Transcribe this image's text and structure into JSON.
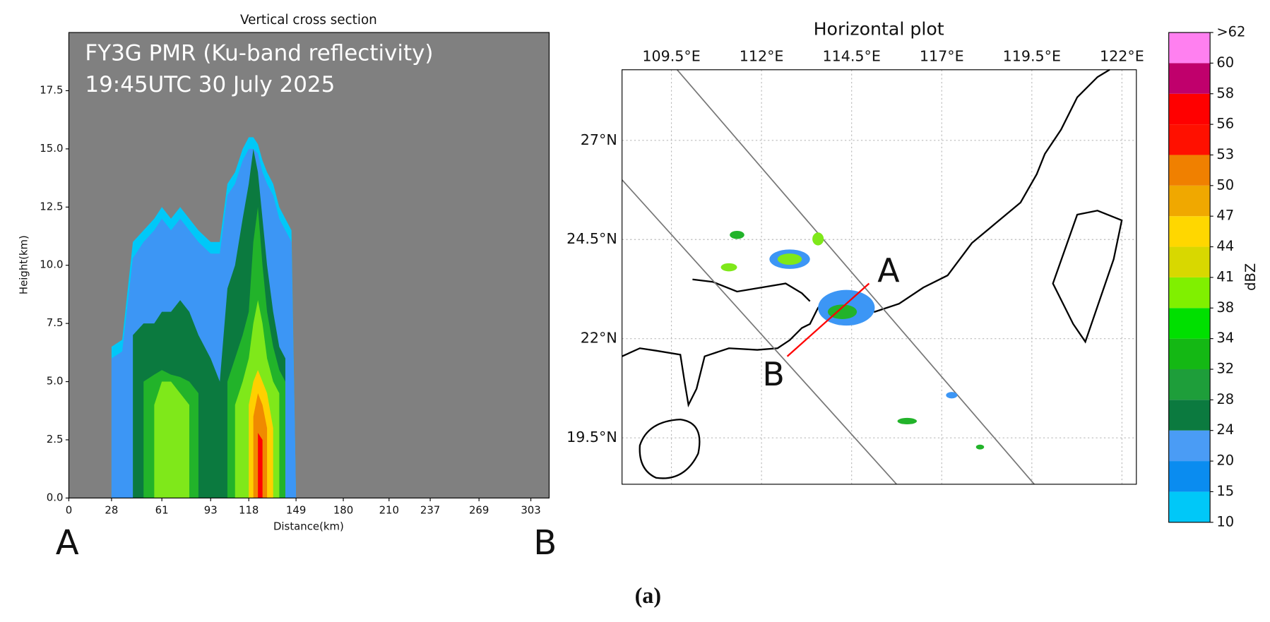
{
  "chart_data": [
    {
      "type": "area",
      "title": "Vertical cross section",
      "annotations": [
        "FY3G PMR (Ku-band reflectivity)",
        "19:45UTC 30 July 2025"
      ],
      "start_label": "A",
      "end_label": "B",
      "x_label": "Distance(km)",
      "y_label": "Height(km)",
      "background": "#808080",
      "xlim": [
        0,
        315
      ],
      "ylim": [
        0,
        20
      ],
      "xticks": [
        0,
        28,
        61,
        93,
        118,
        149,
        180,
        210,
        237,
        269,
        303
      ],
      "yticks": [
        {
          "value": 0,
          "label": "0.0"
        },
        {
          "value": 2.5,
          "label": "2.5"
        },
        {
          "value": 5,
          "label": "5.0"
        },
        {
          "value": 7.5,
          "label": "7.5"
        },
        {
          "value": 10,
          "label": "10.0"
        },
        {
          "value": 12.5,
          "label": "12.5"
        },
        {
          "value": 15,
          "label": "15.0"
        },
        {
          "value": 17.5,
          "label": "17.5"
        }
      ],
      "x": [
        28,
        35,
        42,
        49,
        56,
        61,
        67,
        73,
        79,
        85,
        93,
        99,
        104,
        109,
        114,
        118,
        121,
        124,
        127,
        130,
        134,
        138,
        142,
        146,
        149
      ],
      "series": [
        {
          "color": "#00c8f8",
          "values": [
            6.5,
            6.8,
            11,
            11.5,
            12,
            12.5,
            12,
            12.5,
            12,
            11.5,
            11,
            11,
            13.5,
            14,
            15,
            15.5,
            15.5,
            15.2,
            14.5,
            14,
            13.5,
            12.5,
            12,
            11.5,
            0
          ]
        },
        {
          "color": "#3c96f5",
          "values": [
            6,
            6.3,
            10.3,
            11,
            11.5,
            12,
            11.5,
            12,
            11.5,
            11,
            10.5,
            10.5,
            13,
            13.5,
            14.5,
            15,
            15,
            14.8,
            14,
            13.5,
            13,
            12,
            11.5,
            11,
            0
          ]
        },
        {
          "color": "#0b7a3f",
          "values": [
            null,
            null,
            7,
            7.5,
            7.5,
            8,
            8,
            8.5,
            8,
            7,
            6,
            5,
            9,
            10,
            12,
            13.5,
            15,
            14,
            12,
            10,
            8,
            6.5,
            6,
            null,
            null
          ]
        },
        {
          "color": "#22b32a",
          "values": [
            null,
            null,
            null,
            5,
            5.3,
            5.5,
            5.3,
            5.2,
            5,
            4.5,
            null,
            null,
            5,
            6,
            7,
            8,
            11,
            12.5,
            10,
            8,
            6.5,
            5.5,
            5,
            null,
            null
          ]
        },
        {
          "color": "#7fe81a",
          "values": [
            null,
            null,
            null,
            null,
            4,
            5,
            5,
            4.5,
            4,
            null,
            null,
            null,
            null,
            4,
            5,
            6,
            7.5,
            8.5,
            7.5,
            6,
            5,
            4.5,
            null,
            null,
            null
          ]
        },
        {
          "color": "#ffd000",
          "values": [
            null,
            null,
            null,
            null,
            null,
            null,
            null,
            null,
            null,
            null,
            null,
            null,
            null,
            null,
            null,
            4,
            5,
            5.5,
            5,
            4.5,
            3,
            null,
            null,
            null,
            null
          ]
        },
        {
          "color": "#f08a00",
          "values": [
            null,
            null,
            null,
            null,
            null,
            null,
            null,
            null,
            null,
            null,
            null,
            null,
            null,
            null,
            null,
            null,
            3.5,
            4.5,
            4,
            3,
            null,
            null,
            null,
            null,
            null
          ]
        },
        {
          "color": "#ff0000",
          "values": [
            null,
            null,
            null,
            null,
            null,
            null,
            null,
            null,
            null,
            null,
            null,
            null,
            null,
            null,
            null,
            null,
            null,
            2.8,
            2.5,
            null,
            null,
            null,
            null,
            null,
            null
          ]
        }
      ]
    },
    {
      "type": "map",
      "title": "Horizontal plot",
      "grid": true,
      "xlim": [
        108.13,
        122.4
      ],
      "ylim": [
        18.33,
        28.78
      ],
      "xticks": [
        {
          "value": 109.5,
          "label": "109.5°E"
        },
        {
          "value": 112,
          "label": "112°E"
        },
        {
          "value": 114.5,
          "label": "114.5°E"
        },
        {
          "value": 117,
          "label": "117°E"
        },
        {
          "value": 119.5,
          "label": "119.5°E"
        },
        {
          "value": 122,
          "label": "122°E"
        }
      ],
      "yticks": [
        {
          "value": 19.5,
          "label": "19.5°N"
        },
        {
          "value": 22,
          "label": "22°N"
        },
        {
          "value": 24.5,
          "label": "24.5°N"
        },
        {
          "value": 27,
          "label": "27°N"
        }
      ],
      "point_labels": [
        "A",
        "B"
      ]
    },
    {
      "type": "colorbar",
      "label": "dBZ",
      "ticks": [
        10,
        15,
        20,
        24,
        28,
        32,
        34,
        38,
        41,
        44,
        47,
        50,
        53,
        56,
        58,
        60,
        {
          "value": 62,
          "label": ">62"
        }
      ],
      "colors": [
        "#00c8f8",
        "#0a8cf0",
        "#4a9cf5",
        "#0b7a3f",
        "#1e9e3a",
        "#14b814",
        "#00e000",
        "#80f000",
        "#d8d800",
        "#ffd700",
        "#f0a800",
        "#f08000",
        "#ff1000",
        "#ff0000",
        "#c0006c",
        "#ff80f0"
      ]
    }
  ],
  "caption": "(a)"
}
